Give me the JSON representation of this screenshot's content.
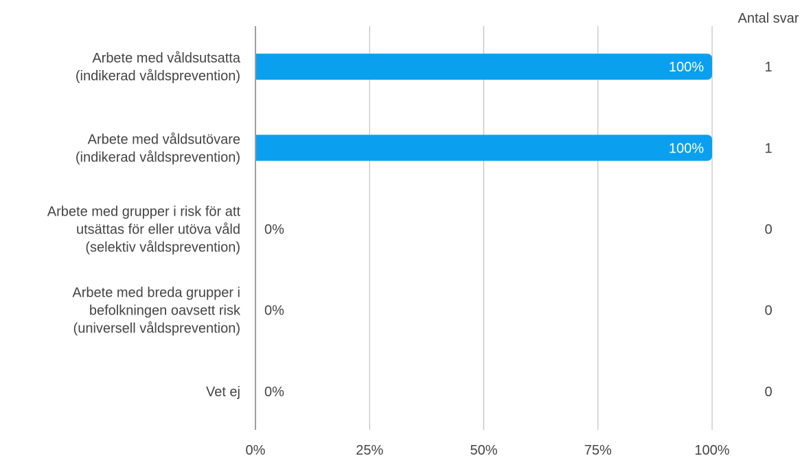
{
  "chart_data": {
    "type": "bar",
    "orientation": "horizontal",
    "categories": [
      [
        "Arbete med våldsutsatta",
        "(indikerad våldsprevention)"
      ],
      [
        "Arbete med våldsutövare",
        "(indikerad våldsprevention)"
      ],
      [
        "Arbete med grupper i risk för att",
        "utsättas för eller utöva våld",
        "(selektiv våldsprevention)"
      ],
      [
        "Arbete med breda grupper i",
        "befolkningen oavsett risk",
        "(universell våldsprevention)"
      ],
      [
        "Vet ej"
      ]
    ],
    "values": [
      100,
      100,
      0,
      0,
      0
    ],
    "value_labels": [
      "100%",
      "100%",
      "0%",
      "0%",
      "0%"
    ],
    "counts_header": "Antal svar",
    "counts": [
      "1",
      "1",
      "0",
      "0",
      "0"
    ],
    "xlim": [
      0,
      100
    ],
    "x_ticks": [
      0,
      25,
      50,
      75,
      100
    ],
    "x_tick_labels": [
      "0%",
      "25%",
      "50%",
      "75%",
      "100%"
    ],
    "grid": true,
    "colors": {
      "bar": "#0ba0ef",
      "grid": "#b5b5b5",
      "axis": "#9e9e9e",
      "text": "#444444",
      "label_inside": "#ffffff"
    }
  }
}
